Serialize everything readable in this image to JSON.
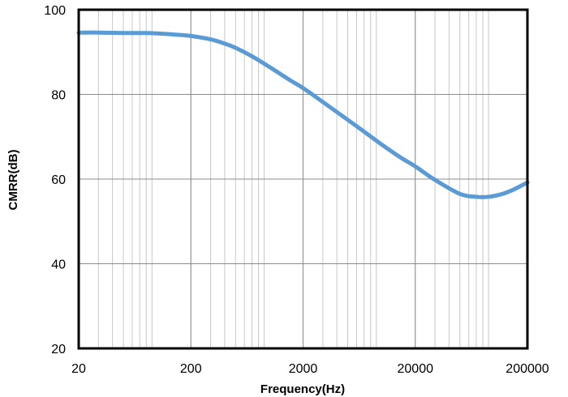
{
  "chart_data": {
    "type": "line",
    "title": "",
    "xlabel": "Frequency(Hz)",
    "ylabel": "CMRR(dB)",
    "x_scale": "log",
    "xlim": [
      20,
      200000
    ],
    "ylim": [
      20,
      100
    ],
    "x_ticks": [
      20,
      200,
      2000,
      20000,
      200000
    ],
    "x_tick_labels": [
      "20",
      "200",
      "2000",
      "20000",
      "200000"
    ],
    "y_ticks": [
      20,
      40,
      60,
      80,
      100
    ],
    "y_tick_labels": [
      "20",
      "40",
      "60",
      "80",
      "100"
    ],
    "grid": true,
    "legend": "none",
    "line_color": "#5b9bd5",
    "series": [
      {
        "x": [
          20,
          30,
          50,
          80,
          100,
          150,
          200,
          300,
          400,
          500,
          700,
          1000,
          1500,
          2000,
          3000,
          5000,
          7000,
          10000,
          15000,
          20000,
          30000,
          50000,
          70000,
          90000,
          120000,
          150000,
          200000
        ],
        "y": [
          94.6,
          94.6,
          94.5,
          94.5,
          94.4,
          94.1,
          93.8,
          93.0,
          92.0,
          91.0,
          89.0,
          86.5,
          83.5,
          81.5,
          78.2,
          74.0,
          71.2,
          68.2,
          65.0,
          63.0,
          59.8,
          56.5,
          55.8,
          55.8,
          56.5,
          57.5,
          59.2
        ]
      }
    ]
  }
}
